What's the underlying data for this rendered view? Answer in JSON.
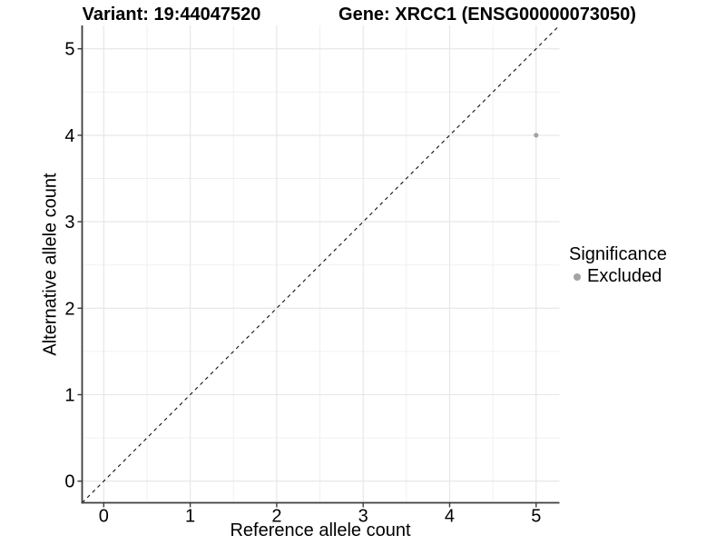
{
  "chart_data": {
    "type": "scatter",
    "title_left": "Variant: 19:44047520",
    "title_right": "Gene: XRCC1 (ENSG00000073050)",
    "xlabel": "Reference allele count",
    "ylabel": "Alternative allele count",
    "xlim": [
      -0.25,
      5.27
    ],
    "ylim": [
      -0.25,
      5.27
    ],
    "xticks": [
      0,
      1,
      2,
      3,
      4,
      5
    ],
    "yticks": [
      0,
      1,
      2,
      3,
      4,
      5
    ],
    "xtick_labels": [
      "0",
      "1",
      "2",
      "3",
      "4",
      "5"
    ],
    "ytick_labels": [
      "0",
      "1",
      "2",
      "3",
      "4",
      "5"
    ],
    "xticks_minor": [
      0.5,
      1.5,
      2.5,
      3.5,
      4.5
    ],
    "yticks_minor": [
      0.5,
      1.5,
      2.5,
      3.5,
      4.5
    ],
    "grid": "major+minor",
    "points": [
      {
        "x": 5,
        "y": 4,
        "series": "Excluded"
      }
    ],
    "reference_line": {
      "kind": "identity y=x",
      "style": "dashed",
      "color": "#111111"
    },
    "legend": {
      "title": "Significance",
      "position": "right",
      "entries": [
        {
          "label": "Excluded",
          "color": "#a3a3a3"
        }
      ]
    },
    "colors": {
      "point": "#a3a3a3",
      "grid_major": "#e5e5e5",
      "grid_minor": "#efefef",
      "axis": "#3c3c3c",
      "text": "#000000",
      "background": "#ffffff"
    }
  }
}
